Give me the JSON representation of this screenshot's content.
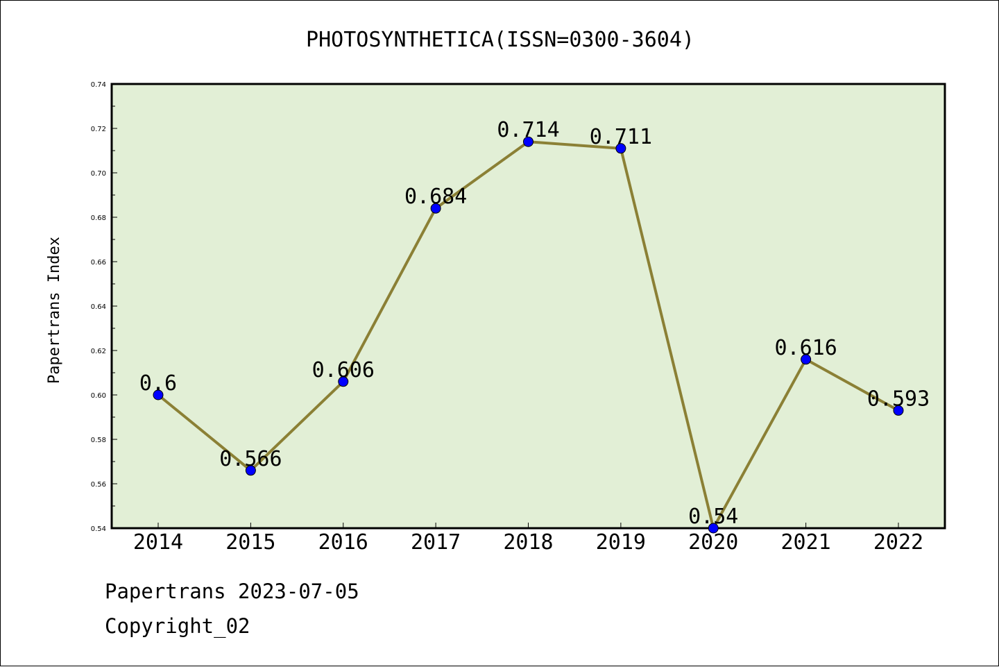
{
  "chart_data": {
    "type": "line",
    "title": "PHOTOSYNTHETICA(ISSN=0300-3604)",
    "xlabel": "",
    "ylabel": "Papertrans Index",
    "categories": [
      "2014",
      "2015",
      "2016",
      "2017",
      "2018",
      "2019",
      "2020",
      "2021",
      "2022"
    ],
    "series": [
      {
        "values": [
          0.6,
          0.566,
          0.606,
          0.684,
          0.714,
          0.711,
          0.54,
          0.616,
          0.593
        ],
        "data_labels": [
          "0.6",
          "0.566",
          "0.606",
          "0.684",
          "0.714",
          "0.711",
          "0.54",
          "0.616",
          "0.593"
        ]
      }
    ],
    "ylim": [
      0.54,
      0.74
    ],
    "yticks": [
      "0.54",
      "0.56",
      "0.58",
      "0.60",
      "0.62",
      "0.64",
      "0.66",
      "0.68",
      "0.70",
      "0.72",
      "0.74"
    ],
    "grid": false,
    "legend": "none",
    "colors": {
      "plot_background": "#e2efd6",
      "line": "#8b8035",
      "marker": "#0000ff"
    }
  },
  "footer": {
    "line1": "Papertrans 2023-07-05",
    "line2": "Copyright_02"
  }
}
